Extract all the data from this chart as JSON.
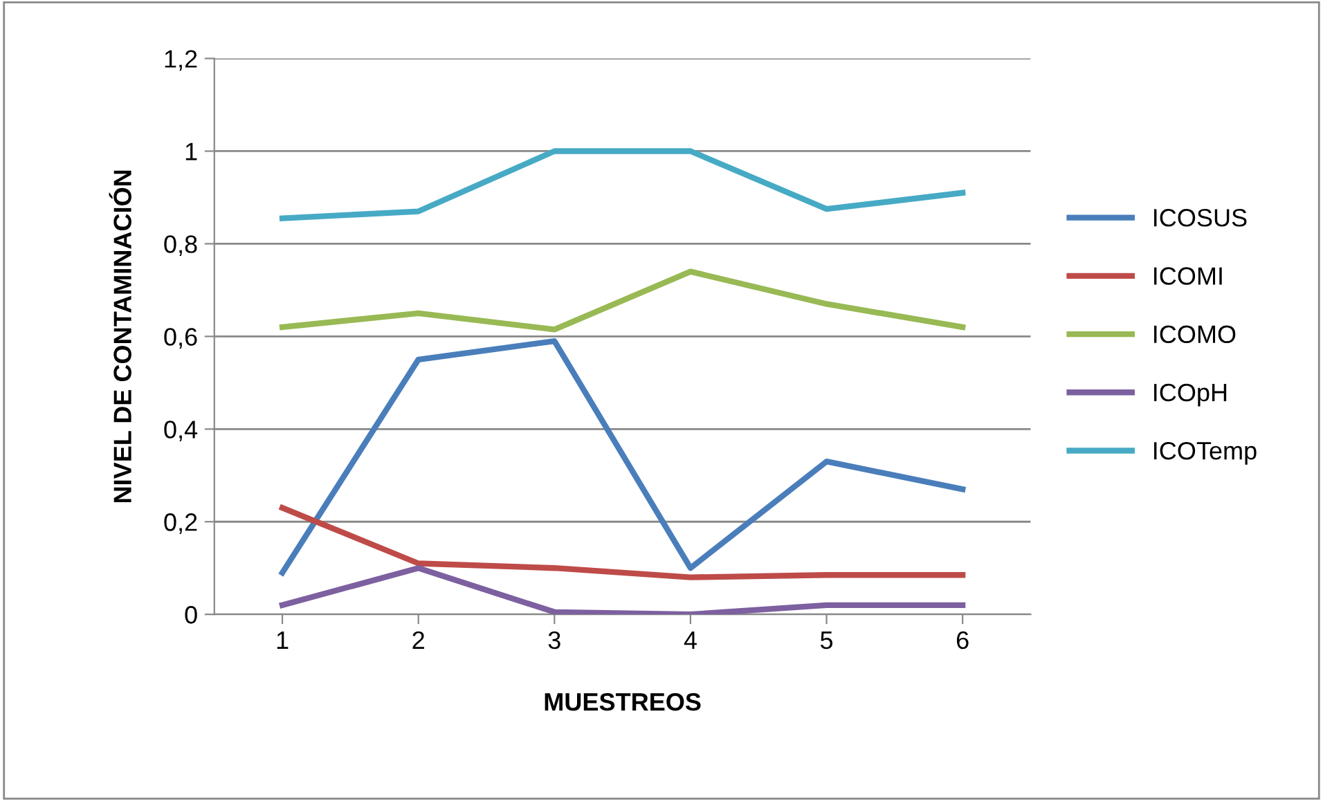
{
  "chart_data": {
    "type": "line",
    "xlabel": "MUESTREOS",
    "ylabel": "NIVEL DE CONTAMINACIÓN",
    "categories": [
      "1",
      "2",
      "3",
      "4",
      "5",
      "6"
    ],
    "ylim": [
      0,
      1.2
    ],
    "yticks": [
      0,
      {
        "value": 0.2,
        "label": "0,2"
      },
      {
        "value": 0.4,
        "label": "0,4"
      },
      {
        "value": 0.6,
        "label": "0,6"
      },
      {
        "value": 0.8,
        "label": "0,8"
      },
      1,
      {
        "value": 1.2,
        "label": "1,2"
      }
    ],
    "grid": "y",
    "legend": "right",
    "marker": "none",
    "line_style": "solid",
    "series": [
      {
        "name": "ICOSUS",
        "color": "#4a7ebb",
        "values": [
          0.09,
          0.55,
          0.59,
          0.1,
          0.33,
          0.27
        ]
      },
      {
        "name": "ICOMI",
        "color": "#be4b48",
        "values": [
          0.23,
          0.11,
          0.1,
          0.08,
          0.085,
          0.085
        ]
      },
      {
        "name": "ICOMO",
        "color": "#98b954",
        "values": [
          0.62,
          0.65,
          0.615,
          0.74,
          0.67,
          0.62
        ]
      },
      {
        "name": "ICOpH",
        "color": "#7d60a0",
        "values": [
          0.02,
          0.1,
          0.005,
          0.0,
          0.02,
          0.02
        ]
      },
      {
        "name": "ICOTemp",
        "color": "#46aac5",
        "values": [
          0.855,
          0.87,
          1.0,
          1.0,
          0.875,
          0.91
        ]
      }
    ]
  }
}
